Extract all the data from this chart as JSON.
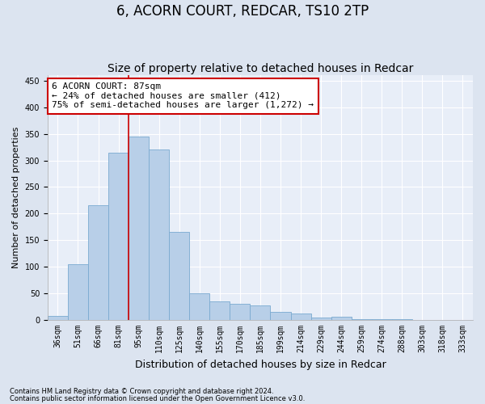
{
  "title": "6, ACORN COURT, REDCAR, TS10 2TP",
  "subtitle": "Size of property relative to detached houses in Redcar",
  "xlabel": "Distribution of detached houses by size in Redcar",
  "ylabel": "Number of detached properties",
  "categories": [
    "36sqm",
    "51sqm",
    "66sqm",
    "81sqm",
    "95sqm",
    "110sqm",
    "125sqm",
    "140sqm",
    "155sqm",
    "170sqm",
    "185sqm",
    "199sqm",
    "214sqm",
    "229sqm",
    "244sqm",
    "259sqm",
    "274sqm",
    "288sqm",
    "303sqm",
    "318sqm",
    "333sqm"
  ],
  "values": [
    8,
    105,
    215,
    315,
    345,
    320,
    165,
    50,
    35,
    30,
    27,
    15,
    12,
    5,
    6,
    2,
    1,
    1,
    0,
    0,
    0
  ],
  "bar_color": "#b8cfe8",
  "bar_edge_color": "#7aaad0",
  "vline_color": "#cc0000",
  "vline_pos": 3.5,
  "annotation_text": "6 ACORN COURT: 87sqm\n← 24% of detached houses are smaller (412)\n75% of semi-detached houses are larger (1,272) →",
  "annotation_box_facecolor": "#ffffff",
  "annotation_box_edgecolor": "#cc0000",
  "footnote1": "Contains HM Land Registry data © Crown copyright and database right 2024.",
  "footnote2": "Contains public sector information licensed under the Open Government Licence v3.0.",
  "ylim": [
    0,
    460
  ],
  "yticks": [
    0,
    50,
    100,
    150,
    200,
    250,
    300,
    350,
    400,
    450
  ],
  "background_color": "#e8eef8",
  "fig_background_color": "#dce4f0",
  "grid_color": "#ffffff",
  "title_fontsize": 12,
  "subtitle_fontsize": 10,
  "tick_fontsize": 7,
  "ylabel_fontsize": 8,
  "xlabel_fontsize": 9,
  "annot_fontsize": 8,
  "footnote_fontsize": 6
}
